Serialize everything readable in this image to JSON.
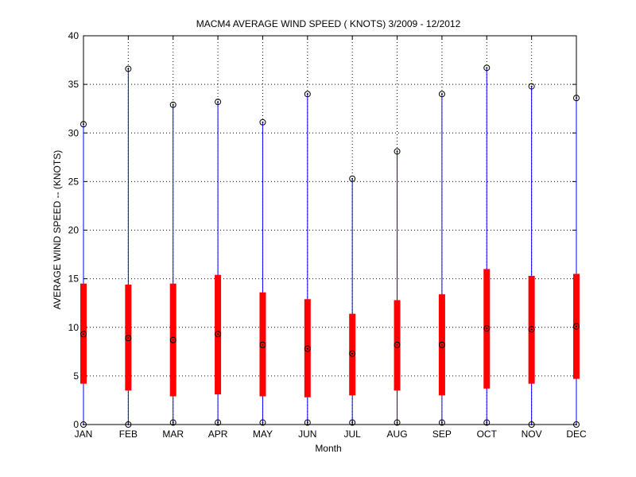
{
  "chart_data": {
    "type": "boxplot",
    "title": "MACM4  AVERAGE WIND SPEED ( KNOTS) 3/2009 - 12/2012",
    "xlabel": "Month",
    "ylabel": "AVERAGE WIND SPEED -- (KNOTS)",
    "categories": [
      "JAN",
      "FEB",
      "MAR",
      "APR",
      "MAY",
      "JUN",
      "JUL",
      "AUG",
      "SEP",
      "OCT",
      "NOV",
      "DEC"
    ],
    "min": [
      0.0,
      0.0,
      0.2,
      0.2,
      0.2,
      0.2,
      0.2,
      0.2,
      0.2,
      0.2,
      0.0,
      0.0
    ],
    "q1": [
      4.2,
      3.5,
      2.9,
      3.1,
      2.9,
      2.8,
      3.0,
      3.5,
      3.0,
      3.7,
      4.2,
      4.7
    ],
    "median": [
      9.3,
      8.9,
      8.7,
      9.3,
      8.2,
      7.8,
      7.3,
      8.2,
      8.2,
      9.9,
      9.8,
      10.1
    ],
    "q3": [
      14.5,
      14.4,
      14.5,
      15.4,
      13.6,
      12.9,
      11.4,
      12.8,
      13.4,
      16.0,
      15.3,
      15.5
    ],
    "max": [
      30.9,
      36.6,
      32.9,
      33.2,
      31.1,
      34.0,
      25.3,
      28.1,
      34.0,
      36.7,
      34.8,
      33.6
    ],
    "ylim": [
      0,
      40
    ],
    "yticks": [
      0,
      5,
      10,
      15,
      20,
      25,
      30,
      35,
      40
    ],
    "grid": true,
    "colors": {
      "whisker": "#0000ff",
      "box": "#ff0000",
      "marker": "#000000"
    }
  }
}
